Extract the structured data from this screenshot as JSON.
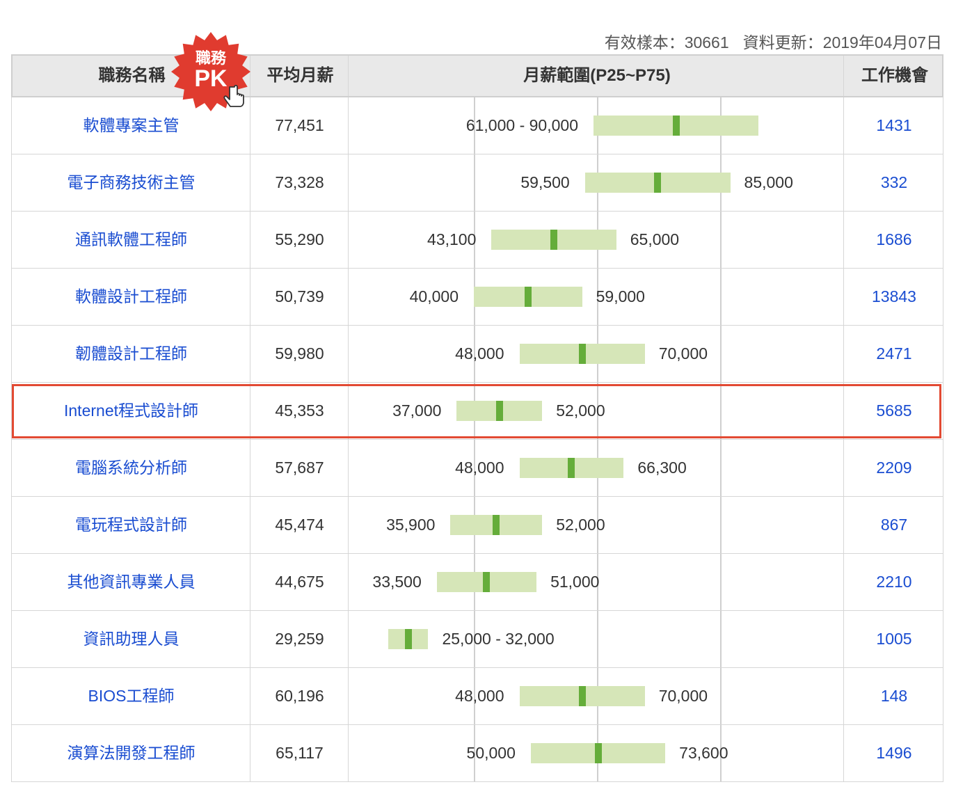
{
  "meta": {
    "sample_label": "有效樣本：30661",
    "updated_label": "資料更新：2019年04月07日"
  },
  "header": {
    "name": "職務名稱",
    "avg": "平均月薪",
    "range": "月薪範圍(P25~P75)",
    "jobs": "工作機會"
  },
  "pk_badge": {
    "line1": "職務",
    "line2": "PK",
    "color": "#e03b2f"
  },
  "colors": {
    "link": "#1a4dd1",
    "bar": "#d6e6b8",
    "marker": "#65ad3a",
    "highlight": "#e24a33"
  },
  "rows": [
    {
      "name": "軟體專案主管",
      "avg": "77,451",
      "p25": 61000,
      "p75": 90000,
      "p25_label": "61,000",
      "p75_label": "90,000",
      "jobs": "1431",
      "combined": true
    },
    {
      "name": "電子商務技術主管",
      "avg": "73,328",
      "p25": 59500,
      "p75": 85000,
      "p25_label": "59,500",
      "p75_label": "85,000",
      "jobs": "332"
    },
    {
      "name": "通訊軟體工程師",
      "avg": "55,290",
      "p25": 43100,
      "p75": 65000,
      "p25_label": "43,100",
      "p75_label": "65,000",
      "jobs": "1686"
    },
    {
      "name": "軟體設計工程師",
      "avg": "50,739",
      "p25": 40000,
      "p75": 59000,
      "p25_label": "40,000",
      "p75_label": "59,000",
      "jobs": "13843"
    },
    {
      "name": "韌體設計工程師",
      "avg": "59,980",
      "p25": 48000,
      "p75": 70000,
      "p25_label": "48,000",
      "p75_label": "70,000",
      "jobs": "2471"
    },
    {
      "name": "Internet程式設計師",
      "avg": "45,353",
      "p25": 37000,
      "p75": 52000,
      "p25_label": "37,000",
      "p75_label": "52,000",
      "jobs": "5685",
      "highlighted": true
    },
    {
      "name": "電腦系統分析師",
      "avg": "57,687",
      "p25": 48000,
      "p75": 66300,
      "p25_label": "48,000",
      "p75_label": "66,300",
      "jobs": "2209"
    },
    {
      "name": "電玩程式設計師",
      "avg": "45,474",
      "p25": 35900,
      "p75": 52000,
      "p25_label": "35,900",
      "p75_label": "52,000",
      "jobs": "867"
    },
    {
      "name": "其他資訊專業人員",
      "avg": "44,675",
      "p25": 33500,
      "p75": 51000,
      "p25_label": "33,500",
      "p75_label": "51,000",
      "jobs": "2210"
    },
    {
      "name": "資訊助理人員",
      "avg": "29,259",
      "p25": 25000,
      "p75": 32000,
      "p25_label": "25,000",
      "p75_label": "32,000",
      "jobs": "1005",
      "combined": true
    },
    {
      "name": "BIOS工程師",
      "avg": "60,196",
      "p25": 48000,
      "p75": 70000,
      "p25_label": "48,000",
      "p75_label": "70,000",
      "jobs": "148"
    },
    {
      "name": "演算法開發工程師",
      "avg": "65,117",
      "p25": 50000,
      "p75": 73600,
      "p25_label": "50,000",
      "p75_label": "73,600",
      "jobs": "1496"
    }
  ]
}
